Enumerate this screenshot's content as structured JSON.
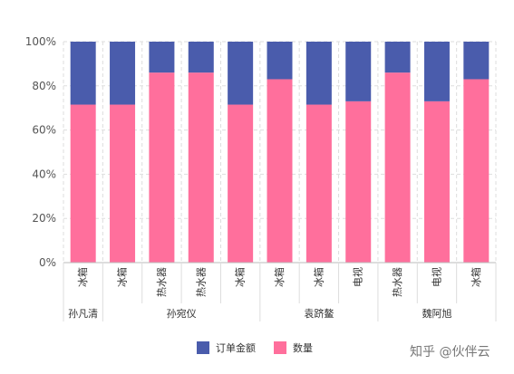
{
  "chart_data": {
    "type": "bar",
    "stacked": true,
    "percent": true,
    "categories": [
      "冰箱",
      "冰箱",
      "热水器",
      "热水器",
      "冰箱",
      "冰箱",
      "冰箱",
      "电视",
      "热水器",
      "电视",
      "冰箱"
    ],
    "groups": [
      {
        "label": "孙凡清",
        "count": 1
      },
      {
        "label": "孙宛仪",
        "count": 4
      },
      {
        "label": "袁跻鳌",
        "count": 3
      },
      {
        "label": "魏阿旭",
        "count": 3
      }
    ],
    "series": [
      {
        "name": "数量",
        "color": "#ff6f9c",
        "values": [
          71.5,
          71.5,
          86,
          86,
          71.5,
          83,
          71.5,
          73,
          86,
          73,
          83
        ]
      },
      {
        "name": "订单金额",
        "color": "#4a5cac",
        "values": [
          28.5,
          28.5,
          14,
          14,
          28.5,
          17,
          28.5,
          27,
          14,
          27,
          17
        ]
      }
    ],
    "y_ticks": [
      "0%",
      "20%",
      "40%",
      "60%",
      "80%",
      "100%"
    ],
    "ylim": [
      0,
      100
    ],
    "grid": true,
    "legend_position": "bottom",
    "legend": [
      {
        "name": "订单金额",
        "color": "#4a5cac"
      },
      {
        "name": "数量",
        "color": "#ff6f9c"
      }
    ]
  },
  "watermark": "知乎 @伙伴云"
}
